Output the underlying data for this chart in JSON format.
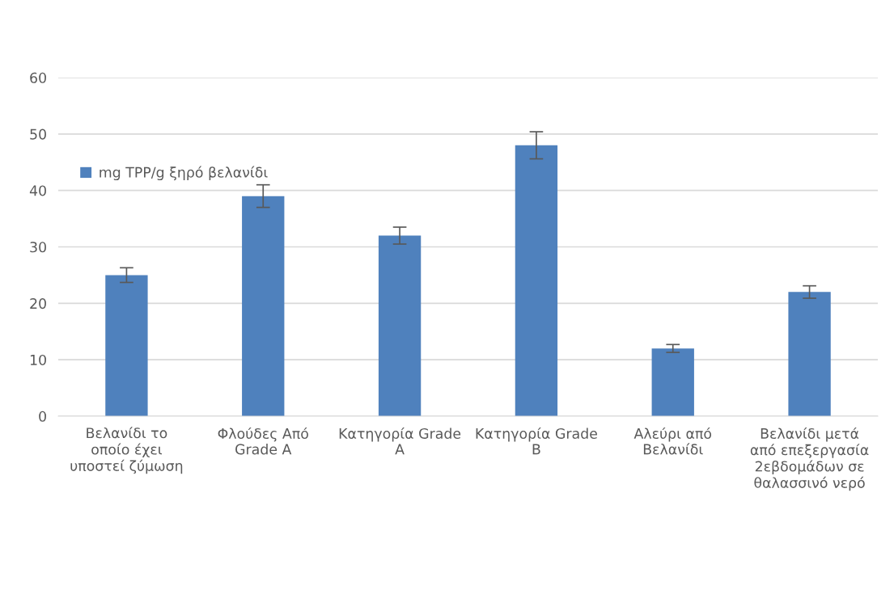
{
  "chart_data": {
    "type": "bar",
    "categories": [
      "Βελανίδι το\nοποίο έχει\nυποστεί ζύμωση",
      "Φλούδες Από\nGrade A",
      "Κατηγορία Grade\nA",
      "Κατηγορία Grade\nB",
      "Αλεύρι από\nΒελανίδι",
      "Βελανίδι μετά\nαπό επεξεργασία\n2εβδομάδων σε\nθαλασσινό νερό"
    ],
    "series": [
      {
        "name": "mg TPP/g ξηρό βελανίδι",
        "color": "#4f81bd",
        "values": [
          25,
          39,
          32,
          48,
          12,
          22
        ],
        "errors": [
          1.3,
          2,
          1.5,
          2.4,
          0.7,
          1.1
        ]
      }
    ],
    "ylim": [
      0,
      60
    ],
    "yticks": [
      0,
      10,
      20,
      30,
      40,
      50,
      60
    ],
    "grid": "y",
    "legend": "top left"
  }
}
